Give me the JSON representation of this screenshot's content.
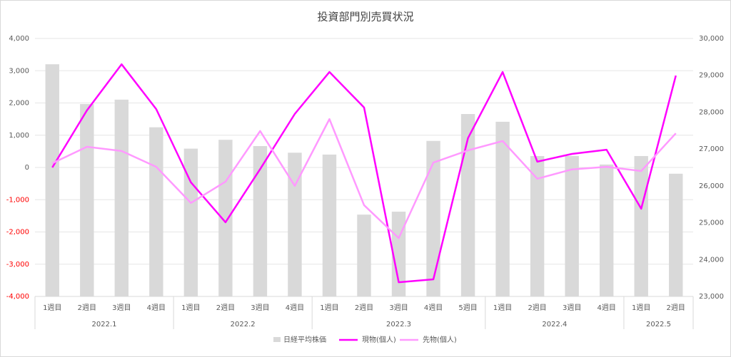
{
  "chart_data": {
    "type": "bar-line",
    "title": "投資部門別売買状況",
    "groups": [
      {
        "name": "2022.1",
        "categories": [
          "1週目",
          "2週目",
          "3週目",
          "4週目"
        ]
      },
      {
        "name": "2022.2",
        "categories": [
          "1週目",
          "2週目",
          "3週目",
          "4週目"
        ]
      },
      {
        "name": "2022.3",
        "categories": [
          "1週目",
          "2週目",
          "3週目",
          "4週目",
          "5週目"
        ]
      },
      {
        "name": "2022.4",
        "categories": [
          "1週目",
          "2週目",
          "3週目",
          "4週目"
        ]
      },
      {
        "name": "2022.5",
        "categories": [
          "1週目",
          "2週目"
        ]
      }
    ],
    "series": [
      {
        "name": "日経平均株価",
        "type": "bar",
        "axis": "y2",
        "color": "#d9d9d9",
        "values": [
          29300,
          28220,
          28340,
          27590,
          27010,
          27250,
          27080,
          26900,
          26850,
          25220,
          25300,
          27220,
          27950,
          27740,
          26810,
          26810,
          26580,
          26810,
          26330
        ]
      },
      {
        "name": "現物(個人)",
        "type": "line",
        "color": "#ff00ff",
        "values": [
          0,
          1770,
          3200,
          1810,
          -460,
          -1700,
          -50,
          1660,
          2960,
          1860,
          -3560,
          -3470,
          910,
          2960,
          180,
          420,
          550,
          -1280,
          2850
        ]
      },
      {
        "name": "先物(個人)",
        "type": "line",
        "color": "#ff99ff",
        "values": [
          130,
          640,
          510,
          20,
          -1100,
          -440,
          1130,
          -570,
          1500,
          -1170,
          -2190,
          150,
          530,
          820,
          -350,
          -60,
          20,
          -110,
          1060
        ]
      }
    ],
    "ylim": [
      -4000,
      4000
    ],
    "yticks": [
      {
        "value": -4000,
        "label": "-4,000"
      },
      {
        "value": -3000,
        "label": "-3,000"
      },
      {
        "value": -2000,
        "label": "-2,000"
      },
      {
        "value": -1000,
        "label": "-1,000"
      },
      0,
      {
        "value": 1000,
        "label": "1,000"
      },
      {
        "value": 2000,
        "label": "2,000"
      },
      {
        "value": 3000,
        "label": "3,000"
      },
      {
        "value": 4000,
        "label": "4,000"
      }
    ],
    "negative_tick_color": "#ff0000",
    "y2lim": [
      23000,
      30000
    ],
    "y2ticks": [
      {
        "value": 23000,
        "label": "23,000"
      },
      {
        "value": 24000,
        "label": "24,000"
      },
      {
        "value": 25000,
        "label": "25,000"
      },
      {
        "value": 26000,
        "label": "26,000"
      },
      {
        "value": 27000,
        "label": "27,000"
      },
      {
        "value": 28000,
        "label": "28,000"
      },
      {
        "value": 29000,
        "label": "29,000"
      },
      {
        "value": 30000,
        "label": "30,000"
      }
    ],
    "grid": true,
    "legend": "bottom"
  }
}
